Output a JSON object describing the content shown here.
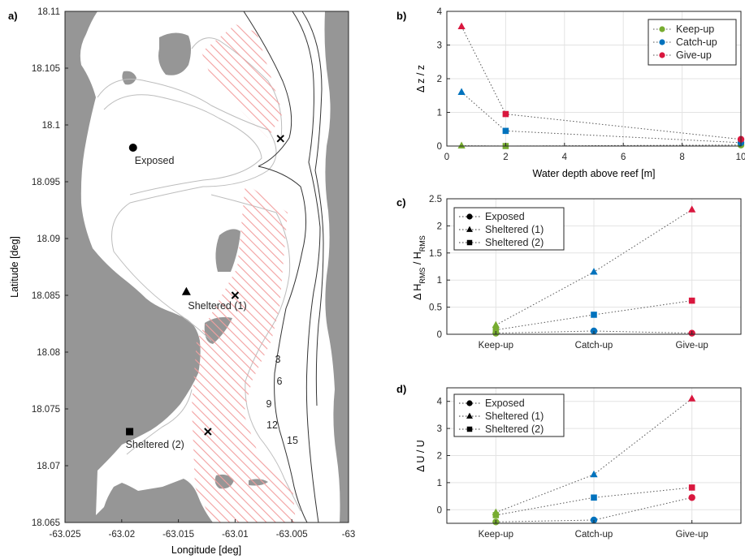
{
  "chart_data": [
    {
      "panel": "a)",
      "type": "map",
      "xlabel": "Longitude [deg]",
      "ylabel": "Latitude [deg]",
      "xlim": [
        -63.025,
        -63.0
      ],
      "ylim": [
        18.065,
        18.11
      ],
      "xticks": [
        "-63.025",
        "-63.02",
        "-63.015",
        "-63.01",
        "-63.005",
        "-63"
      ],
      "yticks": [
        "18.065",
        "18.07",
        "18.075",
        "18.08",
        "18.085",
        "18.09",
        "18.095",
        "18.1",
        "18.105",
        "18.11"
      ],
      "sites": [
        {
          "label": "Exposed",
          "marker": "circle",
          "x": -63.019,
          "y": 18.098
        },
        {
          "label": "Sheltered (1)",
          "marker": "triangle",
          "x": -63.0143,
          "y": 18.0853
        },
        {
          "label": "Sheltered (2)",
          "marker": "square",
          "x": -63.0193,
          "y": 18.073
        }
      ],
      "cross_markers": [
        {
          "x": -63.006,
          "y": 18.0988
        },
        {
          "x": -63.01,
          "y": 18.085
        },
        {
          "x": -63.0124,
          "y": 18.073
        }
      ],
      "contour_labels": [
        "3",
        "6",
        "9",
        "12",
        "15"
      ],
      "colors": {
        "land": "#969696",
        "hatch": "#f2a0a0",
        "contour_dark": "#333333",
        "contour_light": "#bdbdbd"
      }
    },
    {
      "panel": "b)",
      "type": "line",
      "xlabel": "Water depth above reef [m]",
      "ylabel": "Δ z / z",
      "xlim": [
        0,
        10
      ],
      "ylim": [
        0,
        4
      ],
      "xticks": [
        "0",
        "2",
        "4",
        "6",
        "8",
        "10"
      ],
      "yticks": [
        "0",
        "1",
        "2",
        "3",
        "4"
      ],
      "legend_position": "top-right",
      "legend_marker": "circle",
      "series": [
        {
          "name": "Keep-up",
          "color": "#77ac30",
          "points": [
            {
              "x": 0.5,
              "y": 0.01,
              "marker": "triangle"
            },
            {
              "x": 2,
              "y": 0.0,
              "marker": "square"
            },
            {
              "x": 10,
              "y": 0.03,
              "marker": "circle"
            }
          ]
        },
        {
          "name": "Catch-up",
          "color": "#0072bd",
          "points": [
            {
              "x": 0.5,
              "y": 1.6,
              "marker": "triangle"
            },
            {
              "x": 2,
              "y": 0.45,
              "marker": "square"
            },
            {
              "x": 10,
              "y": 0.1,
              "marker": "circle"
            }
          ]
        },
        {
          "name": "Give-up",
          "color": "#d9173e",
          "points": [
            {
              "x": 0.5,
              "y": 3.55,
              "marker": "triangle"
            },
            {
              "x": 2,
              "y": 0.95,
              "marker": "square"
            },
            {
              "x": 10,
              "y": 0.2,
              "marker": "circle"
            }
          ]
        }
      ]
    },
    {
      "panel": "c)",
      "type": "line",
      "ylabel": "Δ H_RMS / H_RMS",
      "categories": [
        "Keep-up",
        "Catch-up",
        "Give-up"
      ],
      "category_colors": [
        "#77ac30",
        "#0072bd",
        "#d9173e"
      ],
      "ylim": [
        0,
        2.5
      ],
      "yticks": [
        "0",
        "0.5",
        "1",
        "1.5",
        "2",
        "2.5"
      ],
      "legend_position": "top-left",
      "series": [
        {
          "name": "Exposed",
          "marker": "circle",
          "values": [
            0.02,
            0.06,
            0.02
          ]
        },
        {
          "name": "Sheltered (1)",
          "marker": "triangle",
          "values": [
            0.17,
            1.15,
            2.3
          ]
        },
        {
          "name": "Sheltered (2)",
          "marker": "square",
          "values": [
            0.08,
            0.36,
            0.62
          ]
        }
      ]
    },
    {
      "panel": "d)",
      "type": "line",
      "ylabel": "Δ U / U",
      "categories": [
        "Keep-up",
        "Catch-up",
        "Give-up"
      ],
      "category_colors": [
        "#77ac30",
        "#0072bd",
        "#d9173e"
      ],
      "ylim": [
        -0.5,
        4.5
      ],
      "yticks": [
        "0",
        "1",
        "2",
        "3",
        "4"
      ],
      "legend_position": "top-left",
      "series": [
        {
          "name": "Exposed",
          "marker": "circle",
          "values": [
            -0.45,
            -0.38,
            0.45
          ]
        },
        {
          "name": "Sheltered (1)",
          "marker": "triangle",
          "values": [
            -0.1,
            1.3,
            4.1
          ]
        },
        {
          "name": "Sheltered (2)",
          "marker": "square",
          "values": [
            -0.2,
            0.45,
            0.82
          ]
        }
      ]
    }
  ]
}
